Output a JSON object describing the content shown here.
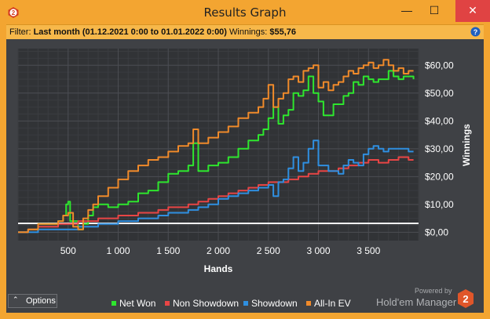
{
  "window": {
    "title": "Results Graph",
    "minimize_glyph": "—",
    "maximize_glyph": "☐",
    "close_glyph": "✕"
  },
  "filter": {
    "prefix": "Filter:",
    "value": "Last month (01.12.2021 0:00 to 01.01.2022 0:00)",
    "winnings_label": "Winnings:",
    "winnings_value": "$55,76"
  },
  "icons": {
    "app": "holdem-manager-logo-icon",
    "help": "help-icon",
    "brand": "holdem-manager-2-logo"
  },
  "options_button": {
    "caret": "⌃",
    "label": "Options"
  },
  "branding": {
    "powered": "Powered by",
    "name": "Hold'em Manager",
    "badge": "2"
  },
  "colors": {
    "accent": "#f3a531",
    "panel": "#3f4145",
    "net_won": "#2ee62e",
    "non_showdown": "#e84545",
    "showdown": "#2f8fe0",
    "allin_ev": "#f08a2a"
  },
  "chart_data": {
    "type": "line",
    "xlabel": "Hands",
    "ylabel": "Winnings",
    "xlim": [
      0,
      4000
    ],
    "ylim": [
      -3,
      66
    ],
    "x_ticks": [
      500,
      1000,
      1500,
      2000,
      2500,
      3000,
      3500
    ],
    "x_tick_labels": [
      "500",
      "1 000",
      "1 500",
      "2 000",
      "2 500",
      "3 000",
      "3 500"
    ],
    "y_ticks": [
      0,
      10,
      20,
      30,
      40,
      50,
      60
    ],
    "y_tick_labels": [
      "$0,00",
      "$10,00",
      "$20,00",
      "$30,00",
      "$40,00",
      "$50,00",
      "$60,00"
    ],
    "grid": true,
    "legend_position": "bottom",
    "series": [
      {
        "name": "Net Won",
        "color": "#2ee62e",
        "x": [
          0,
          100,
          200,
          300,
          400,
          450,
          480,
          500,
          520,
          600,
          650,
          700,
          750,
          800,
          900,
          1000,
          1100,
          1200,
          1300,
          1400,
          1500,
          1600,
          1700,
          1750,
          1800,
          1900,
          2000,
          2100,
          2200,
          2300,
          2400,
          2450,
          2500,
          2550,
          2600,
          2650,
          2700,
          2750,
          2800,
          2850,
          2900,
          2950,
          3000,
          3050,
          3100,
          3150,
          3200,
          3250,
          3300,
          3350,
          3400,
          3450,
          3500,
          3550,
          3600,
          3650,
          3700,
          3750,
          3800,
          3850,
          3900,
          3950
        ],
        "y": [
          0,
          1,
          3,
          3,
          4,
          6,
          10,
          11,
          4,
          1,
          3,
          6,
          9,
          10,
          9,
          10,
          11,
          14,
          15,
          18,
          21,
          22,
          24,
          32,
          22,
          24,
          25,
          27,
          30,
          33,
          35,
          37,
          41,
          45,
          39,
          42,
          44,
          50,
          49,
          51,
          56,
          50,
          47,
          42,
          42,
          46,
          46,
          49,
          50,
          54,
          53,
          56,
          55,
          54,
          55,
          55,
          58,
          56,
          55,
          56,
          56,
          55
        ]
      },
      {
        "name": "Non Showdown",
        "color": "#e84545",
        "x": [
          0,
          100,
          200,
          300,
          400,
          500,
          600,
          700,
          800,
          900,
          1000,
          1100,
          1200,
          1300,
          1400,
          1500,
          1600,
          1700,
          1800,
          1900,
          2000,
          2100,
          2200,
          2300,
          2400,
          2500,
          2600,
          2700,
          2800,
          2900,
          3000,
          3100,
          3200,
          3300,
          3400,
          3500,
          3600,
          3700,
          3800,
          3900,
          3950
        ],
        "y": [
          0,
          1,
          2,
          2,
          3,
          3,
          4,
          4,
          5,
          5,
          6,
          6,
          7,
          7,
          8,
          9,
          9,
          10,
          11,
          12,
          13,
          14,
          15,
          16,
          17,
          18,
          18,
          19,
          20,
          21,
          22,
          22,
          23,
          24,
          25,
          26,
          25,
          26,
          27,
          26,
          26
        ]
      },
      {
        "name": "Showdown",
        "color": "#2f8fe0",
        "x": [
          0,
          100,
          200,
          300,
          400,
          500,
          600,
          700,
          800,
          900,
          1000,
          1100,
          1200,
          1300,
          1400,
          1500,
          1600,
          1700,
          1800,
          1900,
          2000,
          2100,
          2200,
          2300,
          2400,
          2500,
          2550,
          2600,
          2650,
          2700,
          2750,
          2800,
          2850,
          2900,
          2950,
          3000,
          3050,
          3100,
          3150,
          3200,
          3250,
          3300,
          3350,
          3400,
          3450,
          3500,
          3550,
          3600,
          3650,
          3700,
          3800,
          3900,
          3950
        ],
        "y": [
          0,
          0,
          1,
          1,
          1,
          1,
          2,
          2,
          3,
          3,
          4,
          4,
          5,
          5,
          6,
          7,
          7,
          8,
          9,
          10,
          12,
          13,
          14,
          15,
          16,
          17,
          13,
          18,
          19,
          23,
          27,
          22,
          25,
          30,
          33,
          24,
          24,
          22,
          22,
          21,
          24,
          26,
          25,
          24,
          28,
          30,
          31,
          30,
          29,
          30,
          30,
          29,
          29
        ]
      },
      {
        "name": "All-In EV",
        "color": "#f08a2a",
        "x": [
          0,
          100,
          200,
          300,
          400,
          450,
          500,
          550,
          600,
          650,
          700,
          750,
          800,
          900,
          1000,
          1100,
          1200,
          1300,
          1400,
          1500,
          1600,
          1700,
          1750,
          1800,
          1900,
          2000,
          2100,
          2200,
          2300,
          2400,
          2450,
          2500,
          2550,
          2600,
          2650,
          2700,
          2750,
          2800,
          2850,
          2900,
          2950,
          3000,
          3050,
          3100,
          3150,
          3200,
          3250,
          3300,
          3350,
          3400,
          3450,
          3500,
          3550,
          3600,
          3650,
          3700,
          3750,
          3800,
          3850,
          3900,
          3950
        ],
        "y": [
          0,
          1,
          3,
          3,
          4,
          6,
          7,
          2,
          1,
          5,
          8,
          10,
          13,
          16,
          19,
          22,
          24,
          26,
          27,
          29,
          31,
          32,
          37,
          32,
          34,
          36,
          38,
          41,
          43,
          45,
          48,
          53,
          45,
          48,
          50,
          55,
          56,
          54,
          58,
          59,
          60,
          52,
          54,
          51,
          53,
          54,
          56,
          58,
          57,
          59,
          60,
          61,
          59,
          60,
          62,
          60,
          58,
          59,
          57,
          58,
          58
        ]
      }
    ]
  }
}
